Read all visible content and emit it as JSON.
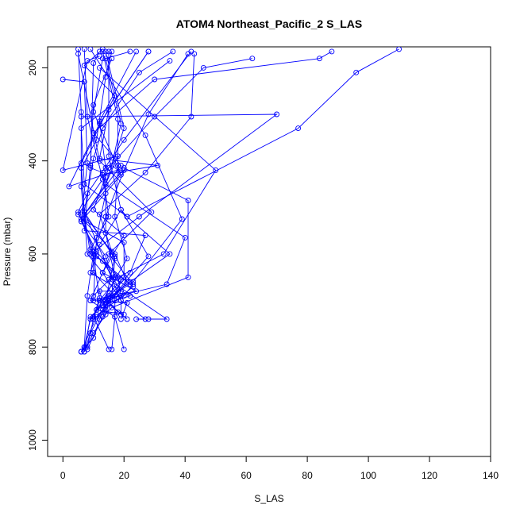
{
  "chart_data": {
    "type": "line",
    "title": "ATOM4 Northeast_Pacific_2 S_LAS",
    "xlabel": "S_LAS",
    "ylabel": "Pressure (mbar)",
    "xlim": [
      -5,
      140
    ],
    "ylim": [
      1035,
      155
    ],
    "y_inverted": true,
    "x_ticks": [
      0,
      20,
      40,
      60,
      80,
      100,
      120,
      140
    ],
    "y_ticks": [
      200,
      400,
      600,
      800,
      1000
    ],
    "grid": false,
    "legend": "none",
    "series_color": "#0000ff",
    "marker": "open-circle",
    "series": [
      {
        "points": [
          [
            6,
            810
          ],
          [
            7,
            800
          ],
          [
            8,
            690
          ],
          [
            10,
            600
          ],
          [
            14,
            520
          ],
          [
            20,
            420
          ],
          [
            28,
            300
          ],
          [
            41,
            170
          ]
        ]
      },
      {
        "points": [
          [
            6,
            810
          ],
          [
            8,
            800
          ],
          [
            10,
            740
          ],
          [
            12,
            700
          ],
          [
            18,
            650
          ],
          [
            33,
            600
          ],
          [
            50,
            420
          ],
          [
            12,
            200
          ]
        ]
      },
      {
        "points": [
          [
            7,
            810
          ],
          [
            9,
            770
          ],
          [
            13,
            720
          ],
          [
            16,
            690
          ],
          [
            23,
            660
          ],
          [
            39,
            525
          ],
          [
            27,
            345
          ],
          [
            9,
            160
          ]
        ]
      },
      {
        "points": [
          [
            7,
            810
          ],
          [
            10,
            770
          ],
          [
            14,
            730
          ],
          [
            15,
            700
          ],
          [
            28,
            605
          ],
          [
            19,
            505
          ],
          [
            15,
            390
          ],
          [
            15,
            165
          ]
        ]
      },
      {
        "points": [
          [
            6,
            810
          ],
          [
            10,
            780
          ],
          [
            12,
            740
          ],
          [
            16,
            690
          ],
          [
            22,
            660
          ],
          [
            35,
            600
          ],
          [
            21,
            520
          ],
          [
            7,
            450
          ],
          [
            6,
            330
          ],
          [
            35,
            185
          ]
        ]
      },
      {
        "points": [
          [
            7,
            810
          ],
          [
            9,
            735
          ],
          [
            13,
            710
          ],
          [
            15,
            695
          ],
          [
            34,
            665
          ],
          [
            40,
            565
          ],
          [
            14,
            450
          ],
          [
            20,
            330
          ],
          [
            14,
            165
          ]
        ]
      },
      {
        "points": [
          [
            6,
            810
          ],
          [
            11,
            735
          ],
          [
            15,
            705
          ],
          [
            21,
            660
          ],
          [
            17,
            600
          ],
          [
            5,
            515
          ],
          [
            13,
            440
          ],
          [
            8,
            305
          ],
          [
            7,
            160
          ]
        ]
      },
      {
        "points": [
          [
            8,
            805
          ],
          [
            13,
            735
          ],
          [
            16,
            715
          ],
          [
            41,
            650
          ],
          [
            41,
            485
          ],
          [
            20,
            415
          ],
          [
            2,
            455
          ],
          [
            12,
            320
          ],
          [
            28,
            165
          ]
        ]
      },
      {
        "points": [
          [
            7,
            800
          ],
          [
            9,
            740
          ],
          [
            13,
            700
          ],
          [
            21,
            610
          ],
          [
            17,
            520
          ],
          [
            18,
            410
          ],
          [
            18,
            310
          ],
          [
            13,
            165
          ]
        ]
      },
      {
        "points": [
          [
            15,
            805
          ],
          [
            10,
            735
          ],
          [
            12,
            695
          ],
          [
            10,
            605
          ],
          [
            7,
            530
          ],
          [
            6,
            455
          ],
          [
            6,
            295
          ],
          [
            5,
            160
          ]
        ]
      },
      {
        "points": [
          [
            16,
            805
          ],
          [
            17,
            735
          ],
          [
            17,
            690
          ],
          [
            19,
            655
          ],
          [
            11,
            595
          ],
          [
            6,
            530
          ],
          [
            19,
            430
          ],
          [
            10,
            295
          ],
          [
            13,
            180
          ]
        ]
      },
      {
        "points": [
          [
            20,
            805
          ],
          [
            17,
            735
          ],
          [
            9,
            700
          ],
          [
            16,
            595
          ],
          [
            12,
            515
          ],
          [
            27,
            425
          ],
          [
            42,
            305
          ],
          [
            43,
            170
          ]
        ]
      },
      {
        "points": [
          [
            10,
            690
          ],
          [
            16,
            650
          ],
          [
            14,
            605
          ],
          [
            6,
            530
          ],
          [
            8,
            405
          ],
          [
            7,
            230
          ],
          [
            0,
            225
          ]
        ]
      },
      {
        "points": [
          [
            13,
            700
          ],
          [
            20,
            650
          ],
          [
            20,
            575
          ],
          [
            6,
            525
          ],
          [
            14,
            450
          ],
          [
            18,
            390
          ],
          [
            0,
            420
          ],
          [
            8,
            185
          ],
          [
            12,
            175
          ]
        ]
      },
      {
        "points": [
          [
            21,
            740
          ],
          [
            14,
            700
          ],
          [
            17,
            605
          ],
          [
            7,
            515
          ],
          [
            19,
            425
          ],
          [
            16,
            410
          ],
          [
            19,
            320
          ],
          [
            14,
            180
          ],
          [
            22,
            165
          ]
        ]
      },
      {
        "points": [
          [
            19,
            740
          ],
          [
            21,
            705
          ],
          [
            10,
            700
          ],
          [
            11,
            565
          ],
          [
            14,
            470
          ],
          [
            13,
            430
          ],
          [
            31,
            410
          ],
          [
            12,
            395
          ],
          [
            15,
            290
          ],
          [
            28,
            165
          ]
        ]
      },
      {
        "points": [
          [
            12,
            700
          ],
          [
            19,
            690
          ],
          [
            18,
            650
          ],
          [
            9,
            590
          ],
          [
            15,
            520
          ],
          [
            13,
            425
          ],
          [
            9,
            415
          ],
          [
            10,
            190
          ],
          [
            12,
            165
          ]
        ]
      },
      {
        "points": [
          [
            9,
            700
          ],
          [
            16,
            690
          ],
          [
            17,
            610
          ],
          [
            7,
            510
          ],
          [
            10,
            395
          ],
          [
            13,
            330
          ],
          [
            25,
            210
          ],
          [
            36,
            165
          ]
        ]
      },
      {
        "points": [
          [
            24,
            740
          ],
          [
            27,
            740
          ],
          [
            19,
            700
          ],
          [
            7,
            510
          ],
          [
            6,
            415
          ],
          [
            11,
            355
          ],
          [
            14,
            220
          ],
          [
            16,
            165
          ]
        ]
      },
      {
        "points": [
          [
            28,
            740
          ],
          [
            34,
            740
          ],
          [
            15,
            655
          ],
          [
            17,
            650
          ],
          [
            14,
            555
          ],
          [
            14,
            435
          ],
          [
            14,
            415
          ],
          [
            12,
            315
          ],
          [
            24,
            165
          ]
        ]
      },
      {
        "points": [
          [
            10,
            740
          ],
          [
            23,
            670
          ],
          [
            22,
            665
          ],
          [
            11,
            605
          ],
          [
            5,
            510
          ],
          [
            8,
            470
          ],
          [
            20,
            355
          ],
          [
            42,
            165
          ]
        ]
      },
      {
        "points": [
          [
            11,
            730
          ],
          [
            18,
            725
          ],
          [
            14,
            700
          ],
          [
            17,
            690
          ],
          [
            10,
            640
          ],
          [
            10,
            595
          ],
          [
            25,
            520
          ],
          [
            70,
            300
          ],
          [
            6,
            305
          ]
        ]
      },
      {
        "points": [
          [
            19,
            730
          ],
          [
            19,
            700
          ],
          [
            13,
            640
          ],
          [
            8,
            600
          ],
          [
            7,
            510
          ],
          [
            6,
            405
          ],
          [
            17,
            260
          ],
          [
            7,
            195
          ],
          [
            13,
            160
          ]
        ]
      },
      {
        "points": [
          [
            20,
            730
          ],
          [
            11,
            720
          ],
          [
            14,
            700
          ],
          [
            22,
            640
          ],
          [
            27,
            560
          ],
          [
            7,
            550
          ],
          [
            9,
            410
          ],
          [
            10,
            280
          ],
          [
            16,
            180
          ]
        ]
      },
      {
        "points": [
          [
            11,
            720
          ],
          [
            13,
            710
          ],
          [
            17,
            700
          ],
          [
            20,
            690
          ],
          [
            23,
            665
          ],
          [
            15,
            600
          ],
          [
            29,
            510
          ],
          [
            12,
            400
          ],
          [
            5,
            170
          ]
        ]
      },
      {
        "points": [
          [
            14,
            710
          ],
          [
            17,
            700
          ],
          [
            22,
            690
          ],
          [
            9,
            640
          ],
          [
            12,
            580
          ],
          [
            19,
            505
          ],
          [
            21,
            520
          ],
          [
            77,
            330
          ],
          [
            96,
            210
          ],
          [
            110,
            160
          ]
        ]
      },
      {
        "points": [
          [
            13,
            710
          ],
          [
            15,
            690
          ],
          [
            24,
            680
          ],
          [
            13,
            640
          ],
          [
            20,
            560
          ],
          [
            10,
            505
          ],
          [
            15,
            415
          ],
          [
            30,
            305
          ],
          [
            46,
            200
          ],
          [
            62,
            180
          ]
        ]
      },
      {
        "points": [
          [
            14,
            720
          ],
          [
            12,
            680
          ],
          [
            19,
            680
          ],
          [
            13,
            615
          ],
          [
            9,
            600
          ],
          [
            7,
            515
          ],
          [
            19,
            410
          ],
          [
            10,
            340
          ],
          [
            30,
            225
          ],
          [
            84,
            180
          ],
          [
            88,
            165
          ]
        ]
      }
    ]
  }
}
